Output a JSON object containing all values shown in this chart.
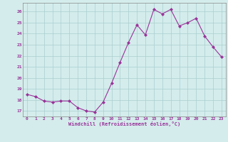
{
  "x": [
    0,
    1,
    2,
    3,
    4,
    5,
    6,
    7,
    8,
    9,
    10,
    11,
    12,
    13,
    14,
    15,
    16,
    17,
    18,
    19,
    20,
    21,
    22,
    23
  ],
  "y": [
    18.5,
    18.3,
    17.9,
    17.8,
    17.9,
    17.9,
    17.3,
    17.0,
    16.9,
    17.8,
    19.5,
    21.4,
    23.2,
    24.8,
    23.9,
    26.2,
    25.8,
    26.2,
    24.7,
    25.0,
    25.4,
    23.8,
    22.8,
    21.9
  ],
  "line_color": "#993399",
  "marker_color": "#993399",
  "bg_color": "#d4ecec",
  "grid_color": "#aacece",
  "xlabel": "Windchill (Refroidissement éolien,°C)",
  "xlabel_color": "#993399",
  "tick_color": "#993399",
  "ylim": [
    16.5,
    26.8
  ],
  "xlim": [
    -0.5,
    23.5
  ],
  "yticks": [
    17,
    18,
    19,
    20,
    21,
    22,
    23,
    24,
    25,
    26
  ],
  "xticks": [
    0,
    1,
    2,
    3,
    4,
    5,
    6,
    7,
    8,
    9,
    10,
    11,
    12,
    13,
    14,
    15,
    16,
    17,
    18,
    19,
    20,
    21,
    22,
    23
  ]
}
